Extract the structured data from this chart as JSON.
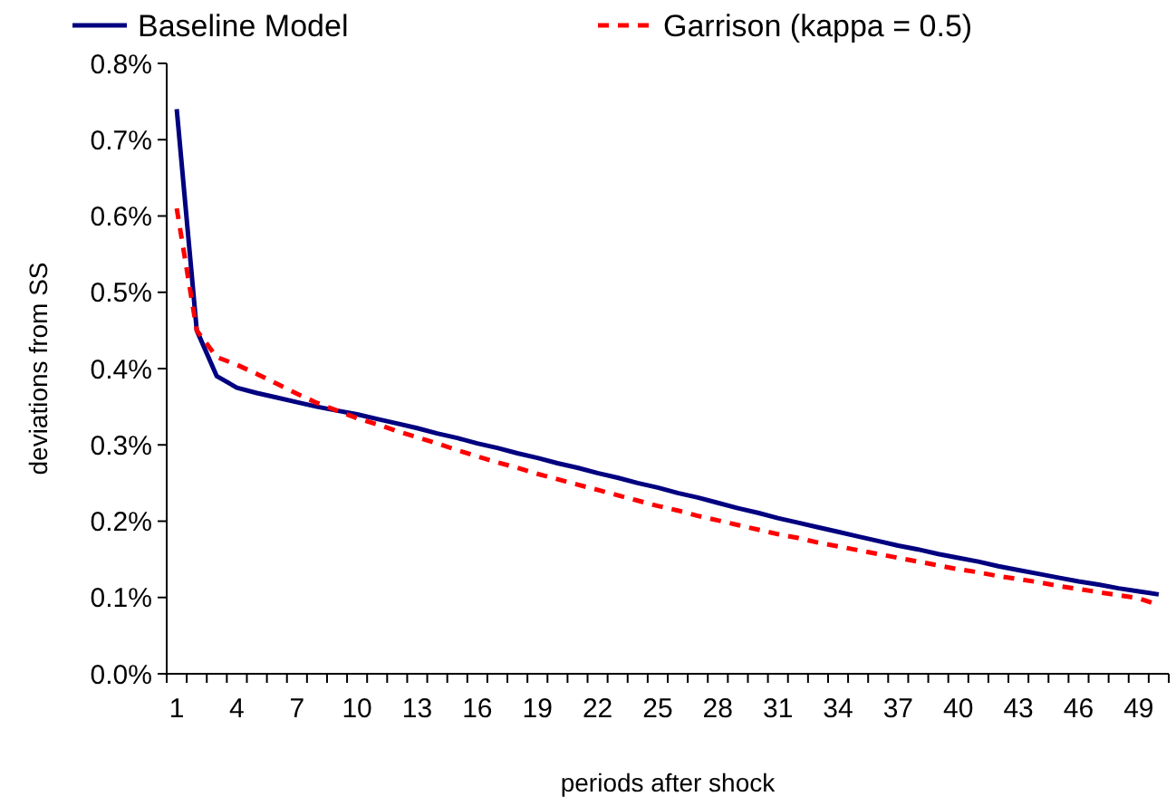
{
  "chart_data": {
    "type": "line",
    "xlabel": "periods after shock",
    "ylabel": "deviations from SS",
    "categories": [
      "1",
      null,
      null,
      "4",
      null,
      null,
      "7",
      null,
      null,
      "10",
      null,
      null,
      "13",
      null,
      null,
      "16",
      null,
      null,
      "19",
      null,
      null,
      "22",
      null,
      null,
      "25",
      null,
      null,
      "28",
      null,
      null,
      "31",
      null,
      null,
      "34",
      null,
      null,
      "37",
      null,
      null,
      "40",
      null,
      null,
      "43",
      null,
      null,
      "46",
      null,
      null,
      "49",
      null
    ],
    "ylim": [
      0,
      0.8
    ],
    "yticks": [
      {
        "value": 0,
        "label": "0.0%"
      },
      {
        "value": 0.1,
        "label": "0.1%"
      },
      {
        "value": 0.2,
        "label": "0.2%"
      },
      {
        "value": 0.3,
        "label": "0.3%"
      },
      {
        "value": 0.4,
        "label": "0.4%"
      },
      {
        "value": 0.5,
        "label": "0.5%"
      },
      {
        "value": 0.6,
        "label": "0.6%"
      },
      {
        "value": 0.7,
        "label": "0.7%"
      },
      {
        "value": 0.8,
        "label": "0.8%"
      }
    ],
    "grid": false,
    "legend": "top",
    "marker": "none",
    "series": [
      {
        "name": "Baseline Model",
        "color": "#000080",
        "line_style": "solid",
        "values": [
          0.74,
          0.45,
          0.39,
          0.375,
          0.368,
          0.362,
          0.356,
          0.35,
          0.345,
          0.34,
          0.334,
          0.328,
          0.322,
          0.315,
          0.309,
          0.302,
          0.296,
          0.289,
          0.283,
          0.276,
          0.27,
          0.263,
          0.257,
          0.25,
          0.244,
          0.237,
          0.231,
          0.224,
          0.217,
          0.211,
          0.204,
          0.198,
          0.192,
          0.186,
          0.18,
          0.174,
          0.168,
          0.163,
          0.157,
          0.152,
          0.147,
          0.141,
          0.136,
          0.131,
          0.126,
          0.121,
          0.117,
          0.112,
          0.108,
          0.104
        ]
      },
      {
        "name": "Garrison (kappa = 0.5)",
        "color": "#ff0000",
        "line_style": "dashed",
        "values": [
          0.61,
          0.45,
          0.415,
          0.405,
          0.393,
          0.38,
          0.367,
          0.355,
          0.345,
          0.335,
          0.327,
          0.318,
          0.31,
          0.302,
          0.293,
          0.285,
          0.277,
          0.27,
          0.262,
          0.255,
          0.248,
          0.241,
          0.234,
          0.227,
          0.22,
          0.214,
          0.207,
          0.201,
          0.195,
          0.189,
          0.183,
          0.178,
          0.172,
          0.167,
          0.162,
          0.157,
          0.152,
          0.147,
          0.142,
          0.137,
          0.133,
          0.128,
          0.124,
          0.12,
          0.115,
          0.111,
          0.107,
          0.103,
          0.099,
          0.09
        ]
      }
    ]
  }
}
